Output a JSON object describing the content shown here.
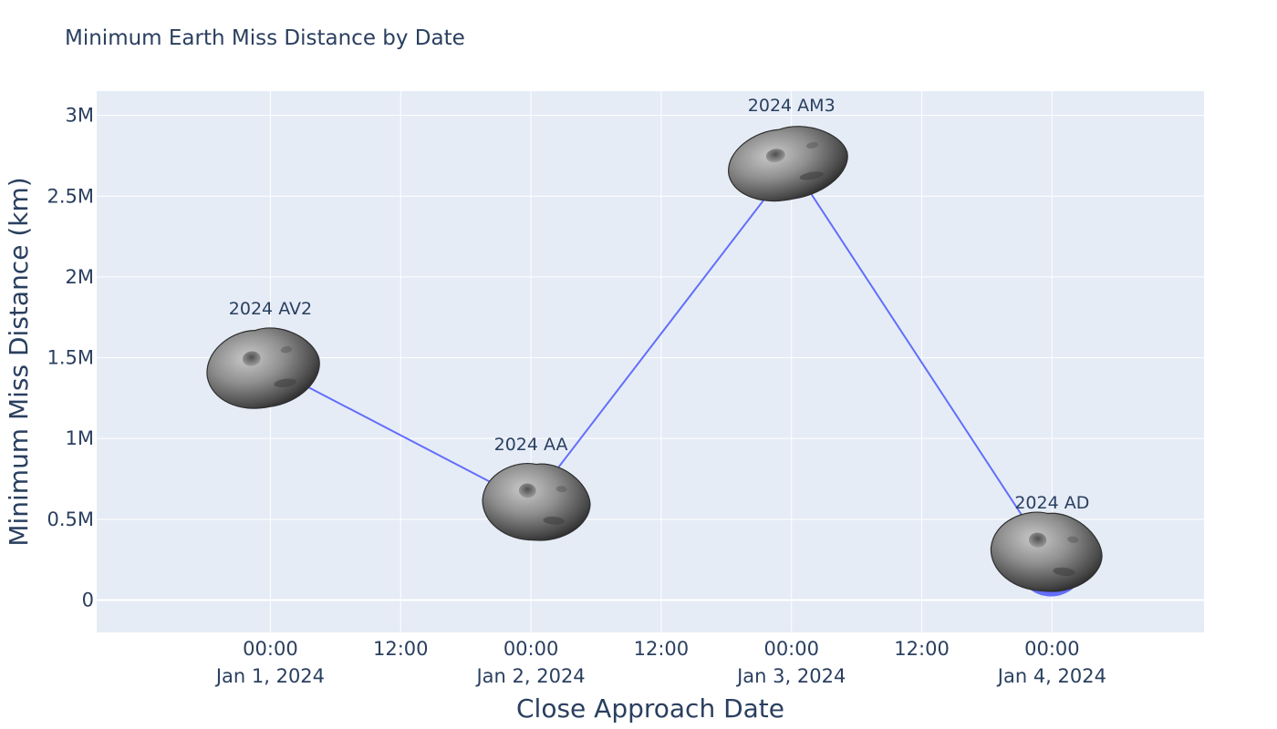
{
  "chart_data": {
    "type": "scatter",
    "mode": "lines+markers+text",
    "title": "Minimum Earth Miss Distance by Date",
    "xlabel": "Close Approach Date",
    "ylabel": "Minimum Miss Distance (km)",
    "x_range": [
      "2023-12-31T08:00",
      "2024-01-04T14:00"
    ],
    "ylim": [
      -200000,
      3150000
    ],
    "x_ticks": [
      {
        "at": "2024-01-01T00:00",
        "line1": "00:00",
        "line2": "Jan 1, 2024"
      },
      {
        "at": "2024-01-01T12:00",
        "line1": "12:00",
        "line2": ""
      },
      {
        "at": "2024-01-02T00:00",
        "line1": "00:00",
        "line2": "Jan 2, 2024"
      },
      {
        "at": "2024-01-02T12:00",
        "line1": "12:00",
        "line2": ""
      },
      {
        "at": "2024-01-03T00:00",
        "line1": "00:00",
        "line2": "Jan 3, 2024"
      },
      {
        "at": "2024-01-03T12:00",
        "line1": "12:00",
        "line2": ""
      },
      {
        "at": "2024-01-04T00:00",
        "line1": "00:00",
        "line2": "Jan 4, 2024"
      }
    ],
    "y_ticks": [
      {
        "value": 0,
        "label": "0"
      },
      {
        "value": 500000,
        "label": "0.5M"
      },
      {
        "value": 1000000,
        "label": "1M"
      },
      {
        "value": 1500000,
        "label": "1.5M"
      },
      {
        "value": 2000000,
        "label": "2M"
      },
      {
        "value": 2500000,
        "label": "2.5M"
      },
      {
        "value": 3000000,
        "label": "3M"
      }
    ],
    "points": [
      {
        "x": "2024-01-01T00:00",
        "y": 1440000,
        "label": "2024 AV2"
      },
      {
        "x": "2024-01-02T00:00",
        "y": 600000,
        "label": "2024 AA"
      },
      {
        "x": "2024-01-03T00:00",
        "y": 2700000,
        "label": "2024 AM3"
      },
      {
        "x": "2024-01-04T00:00",
        "y": 240000,
        "label": "2024 AD"
      }
    ],
    "line_color": "#636efa",
    "plot_bg": "#e5ecf6",
    "grid": true,
    "marker_image": "asteroid"
  }
}
